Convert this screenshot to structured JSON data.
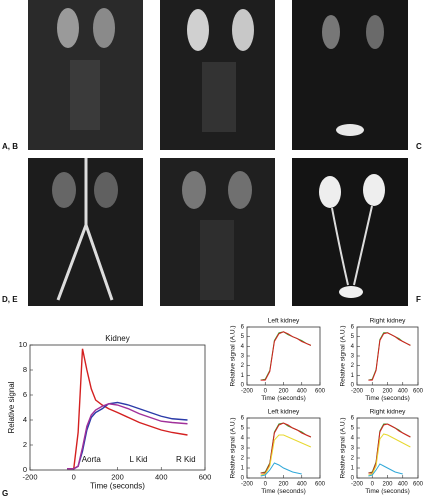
{
  "panel_labels": [
    "A, B",
    "C",
    "D, E",
    "F",
    "G"
  ],
  "chart_data": [
    {
      "type": "line",
      "title": "Kidney",
      "x_label": "Time (seconds)",
      "y_label": "Relative signal",
      "x": [
        -30,
        0,
        20,
        40,
        60,
        80,
        100,
        130,
        160,
        200,
        250,
        300,
        350,
        400,
        450,
        520
      ],
      "series": [
        {
          "name": "Aorta",
          "color": "#d42020",
          "values": [
            0.1,
            0.1,
            3.0,
            9.7,
            8.0,
            6.5,
            5.6,
            5.2,
            4.9,
            4.6,
            4.2,
            3.8,
            3.5,
            3.2,
            3.0,
            2.8
          ]
        },
        {
          "name": "L Kid",
          "color": "#2a3aa8",
          "values": [
            0.1,
            0.1,
            0.3,
            1.5,
            3.2,
            4.2,
            4.6,
            4.9,
            5.3,
            5.4,
            5.2,
            4.9,
            4.6,
            4.3,
            4.1,
            4.0
          ]
        },
        {
          "name": "R Kid",
          "color": "#a0309a",
          "values": [
            0.1,
            0.1,
            0.3,
            1.8,
            3.5,
            4.4,
            4.8,
            5.1,
            5.3,
            5.2,
            4.9,
            4.5,
            4.2,
            3.9,
            3.8,
            3.7
          ]
        }
      ],
      "xlim": [
        -200,
        600
      ],
      "xticks": [
        -200,
        0,
        200,
        400,
        600
      ],
      "ylim": [
        0,
        10
      ],
      "yticks": [
        0,
        2,
        4,
        6,
        8,
        10
      ]
    },
    {
      "type": "line",
      "title": "Left kidney",
      "x_label": "Time (seconds)",
      "y_label": "Relative signal (A.U.)",
      "x": [
        -50,
        0,
        50,
        100,
        150,
        200,
        250,
        300,
        350,
        400,
        450,
        500
      ],
      "series": [
        {
          "color": "#3a9a2a",
          "values": [
            0.5,
            0.6,
            1.5,
            4.6,
            5.4,
            5.5,
            5.2,
            5.0,
            4.8,
            4.6,
            4.3,
            4.1
          ]
        },
        {
          "color": "#d42020",
          "values": [
            0.5,
            0.5,
            1.4,
            4.5,
            5.3,
            5.5,
            5.3,
            5.0,
            4.8,
            4.5,
            4.3,
            4.1
          ]
        }
      ],
      "xlim": [
        -200,
        600
      ],
      "xticks": [
        -200,
        0,
        200,
        400,
        600
      ],
      "ylim": [
        0,
        6
      ],
      "yticks": [
        0,
        1,
        2,
        3,
        4,
        5,
        6
      ]
    },
    {
      "type": "line",
      "title": "Right kidney",
      "x_label": "Time (seconds)",
      "y_label": "Relative signal (A.U.)",
      "x": [
        -50,
        0,
        50,
        100,
        150,
        200,
        250,
        300,
        350,
        400,
        450,
        500
      ],
      "series": [
        {
          "color": "#3a9a2a",
          "values": [
            0.5,
            0.6,
            1.6,
            4.7,
            5.4,
            5.4,
            5.2,
            5.0,
            4.8,
            4.5,
            4.3,
            4.1
          ]
        },
        {
          "color": "#d42020",
          "values": [
            0.5,
            0.5,
            1.5,
            4.6,
            5.3,
            5.4,
            5.2,
            5.0,
            4.7,
            4.5,
            4.3,
            4.1
          ]
        }
      ],
      "xlim": [
        -200,
        600
      ],
      "xticks": [
        -200,
        0,
        200,
        400,
        600
      ],
      "ylim": [
        0,
        6
      ],
      "yticks": [
        0,
        1,
        2,
        3,
        4,
        5,
        6
      ]
    },
    {
      "type": "line",
      "title": "Left kidney",
      "x_label": "Time (seconds)",
      "y_label": "Relative signal (A.U.)",
      "x": [
        -50,
        0,
        50,
        100,
        150,
        200,
        250,
        300,
        350,
        400,
        450,
        500
      ],
      "series": [
        {
          "color": "#3a9a2a",
          "values": [
            0.5,
            0.6,
            1.5,
            4.6,
            5.4,
            5.5,
            5.2,
            5.0,
            4.8,
            4.6,
            4.3,
            4.1
          ]
        },
        {
          "color": "#d42020",
          "values": [
            0.5,
            0.5,
            1.4,
            4.5,
            5.3,
            5.5,
            5.3,
            5.0,
            4.8,
            4.5,
            4.3,
            4.1
          ]
        },
        {
          "color": "#e8d830",
          "values": [
            0.3,
            0.4,
            1.2,
            3.8,
            4.3,
            4.3,
            4.1,
            3.9,
            3.7,
            3.5,
            3.3,
            3.1
          ]
        },
        {
          "color": "#30a8d8",
          "values": [
            0.2,
            0.3,
            0.8,
            1.5,
            1.3,
            1.0,
            0.8,
            0.6,
            0.5,
            0.4,
            null,
            null
          ]
        }
      ],
      "xlim": [
        -200,
        600
      ],
      "xticks": [
        -200,
        0,
        200,
        400,
        600
      ],
      "ylim": [
        0,
        6
      ],
      "yticks": [
        0,
        1,
        2,
        3,
        4,
        5,
        6
      ]
    },
    {
      "type": "line",
      "title": "Right kidney",
      "x_label": "Time (seconds)",
      "y_label": "Relative signal (A.U.)",
      "x": [
        -50,
        0,
        50,
        100,
        150,
        200,
        250,
        300,
        350,
        400,
        450,
        500
      ],
      "series": [
        {
          "color": "#3a9a2a",
          "values": [
            0.5,
            0.6,
            1.6,
            4.7,
            5.4,
            5.4,
            5.2,
            5.0,
            4.8,
            4.5,
            4.3,
            4.1
          ]
        },
        {
          "color": "#d42020",
          "values": [
            0.5,
            0.5,
            1.5,
            4.6,
            5.3,
            5.4,
            5.2,
            5.0,
            4.7,
            4.5,
            4.3,
            4.1
          ]
        },
        {
          "color": "#e8d830",
          "values": [
            0.3,
            0.4,
            1.2,
            3.9,
            4.4,
            4.3,
            4.1,
            3.9,
            3.7,
            3.5,
            3.3,
            3.1
          ]
        },
        {
          "color": "#30a8d8",
          "values": [
            0.2,
            0.3,
            0.8,
            1.4,
            1.2,
            1.0,
            0.8,
            0.6,
            0.5,
            0.4,
            null,
            null
          ]
        }
      ],
      "xlim": [
        -200,
        600
      ],
      "xticks": [
        -200,
        0,
        200,
        400,
        600
      ],
      "ylim": [
        0,
        6
      ],
      "yticks": [
        0,
        1,
        2,
        3,
        4,
        5,
        6
      ]
    }
  ]
}
